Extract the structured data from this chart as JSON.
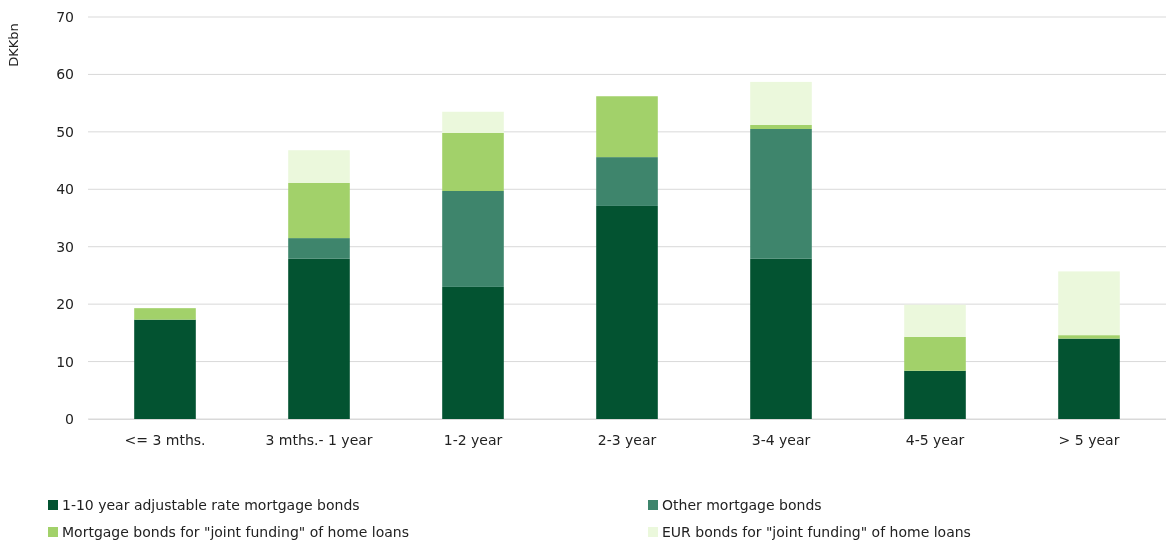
{
  "chart_data": {
    "type": "bar",
    "stacked": true,
    "ylabel": "DKKbn",
    "categories": [
      "<= 3 mths.",
      "3 mths.- 1 year",
      "1-2 year",
      "2-3 year",
      "3-4 year",
      "4-5 year",
      "> 5 year"
    ],
    "series": [
      {
        "name": "1-10 year adjustable rate mortgage bonds",
        "color": "#035331",
        "values": [
          17.3,
          27.9,
          23.0,
          37.1,
          27.9,
          8.4,
          14.0
        ]
      },
      {
        "name": "Other mortgage bonds",
        "color": "#3e856c",
        "values": [
          0,
          3.6,
          16.7,
          8.5,
          22.6,
          0,
          0
        ]
      },
      {
        "name": "Mortgage bonds for \"joint funding\" of home loans",
        "color": "#a2d16a",
        "values": [
          2.0,
          9.6,
          10.1,
          10.6,
          0.7,
          5.9,
          0.6
        ]
      },
      {
        "name": "EUR bonds for \"joint funding\" of home loans",
        "color": "#ebf8dc",
        "values": [
          0,
          5.7,
          3.7,
          0,
          7.5,
          5.6,
          11.1
        ]
      }
    ],
    "ylim": [
      0,
      70
    ],
    "yticks": [
      0,
      10,
      20,
      30,
      40,
      50,
      60,
      70
    ],
    "grid": "y",
    "legend": "bottom"
  }
}
